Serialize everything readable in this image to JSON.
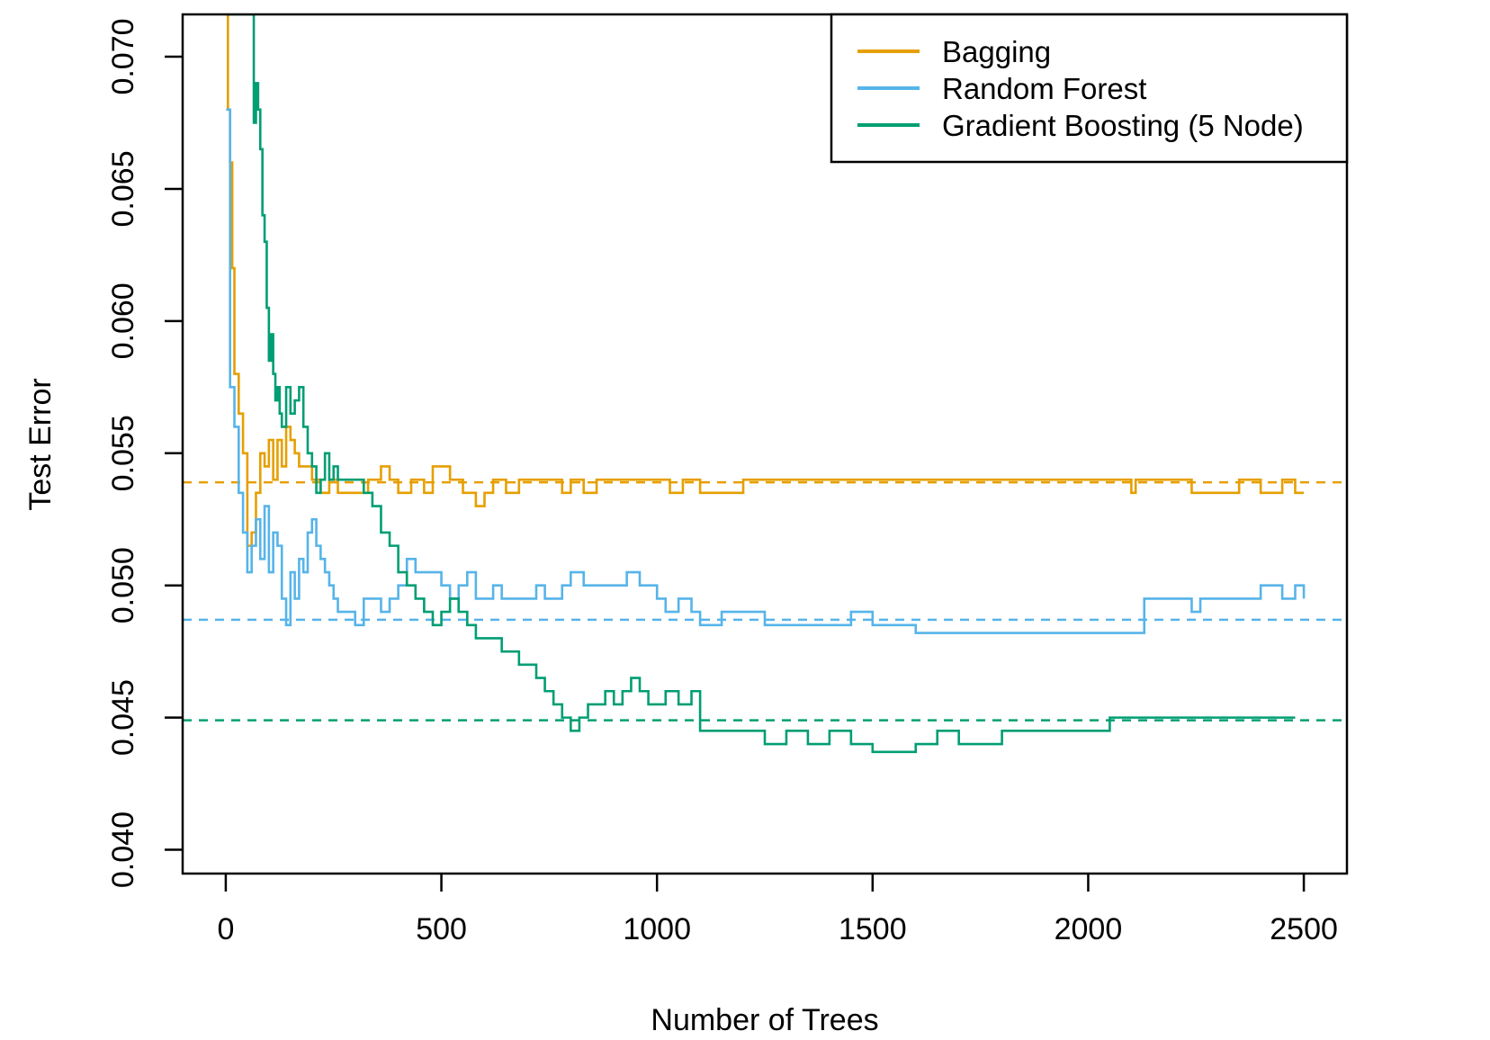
{
  "chart_data": {
    "type": "line",
    "xlabel": "Number of Trees",
    "ylabel": "Test Error",
    "xlim": [
      -100,
      2600
    ],
    "ylim": [
      0.0391,
      0.0716
    ],
    "x_ticks": [
      0,
      500,
      1000,
      1500,
      2000,
      2500
    ],
    "x_tick_labels": [
      "0",
      "500",
      "1000",
      "1500",
      "2000",
      "2500"
    ],
    "y_ticks": [
      0.04,
      0.045,
      0.05,
      0.055,
      0.06,
      0.065,
      0.07
    ],
    "y_tick_labels": [
      "0.040",
      "0.045",
      "0.050",
      "0.055",
      "0.060",
      "0.065",
      "0.070"
    ],
    "legend": {
      "position": "top-right",
      "entries": [
        "Bagging",
        "Random Forest",
        "Gradient Boosting (5 Node)"
      ]
    },
    "series": [
      {
        "name": "Bagging",
        "color": "#E69F00",
        "style": "step",
        "x": [
          1,
          5,
          10,
          15,
          20,
          30,
          40,
          50,
          60,
          70,
          80,
          90,
          100,
          110,
          120,
          130,
          140,
          150,
          160,
          170,
          180,
          200,
          220,
          240,
          260,
          280,
          300,
          330,
          360,
          380,
          400,
          430,
          460,
          480,
          500,
          520,
          550,
          580,
          600,
          620,
          650,
          680,
          700,
          720,
          750,
          780,
          800,
          830,
          860,
          900,
          950,
          1000,
          1030,
          1060,
          1100,
          1150,
          1200,
          1250,
          1300,
          1400,
          1500,
          1600,
          1700,
          1800,
          1900,
          2000,
          2100,
          2110,
          2150,
          2240,
          2300,
          2350,
          2400,
          2450,
          2480,
          2500
        ],
        "values": [
          0.0716,
          0.068,
          0.066,
          0.062,
          0.058,
          0.0565,
          0.055,
          0.0515,
          0.052,
          0.0535,
          0.055,
          0.0545,
          0.0555,
          0.054,
          0.0555,
          0.0545,
          0.056,
          0.0555,
          0.055,
          0.0545,
          0.0545,
          0.054,
          0.0535,
          0.054,
          0.0535,
          0.0535,
          0.0535,
          0.054,
          0.0545,
          0.054,
          0.0535,
          0.054,
          0.0535,
          0.0545,
          0.0545,
          0.054,
          0.0535,
          0.053,
          0.0535,
          0.054,
          0.0535,
          0.054,
          0.054,
          0.054,
          0.054,
          0.0535,
          0.054,
          0.0535,
          0.054,
          0.054,
          0.054,
          0.054,
          0.0535,
          0.054,
          0.0535,
          0.0535,
          0.054,
          0.054,
          0.054,
          0.054,
          0.054,
          0.054,
          0.054,
          0.054,
          0.054,
          0.054,
          0.0535,
          0.054,
          0.054,
          0.0535,
          0.0535,
          0.054,
          0.0535,
          0.054,
          0.0535,
          0.0535
        ]
      },
      {
        "name": "Random Forest",
        "color": "#56B4E9",
        "style": "step",
        "x": [
          1,
          10,
          20,
          30,
          40,
          50,
          60,
          70,
          80,
          90,
          100,
          110,
          120,
          130,
          140,
          150,
          160,
          170,
          180,
          190,
          200,
          210,
          220,
          230,
          240,
          250,
          260,
          280,
          300,
          320,
          340,
          360,
          380,
          400,
          420,
          440,
          460,
          480,
          500,
          520,
          540,
          560,
          580,
          600,
          620,
          640,
          660,
          680,
          700,
          720,
          740,
          760,
          780,
          800,
          830,
          860,
          900,
          930,
          960,
          1000,
          1020,
          1050,
          1080,
          1100,
          1150,
          1200,
          1250,
          1300,
          1350,
          1400,
          1450,
          1500,
          1550,
          1600,
          1700,
          1800,
          1900,
          2000,
          2050,
          2100,
          2130,
          2200,
          2240,
          2260,
          2300,
          2340,
          2400,
          2450,
          2480,
          2500
        ],
        "values": [
          0.068,
          0.0575,
          0.056,
          0.0535,
          0.052,
          0.0505,
          0.0515,
          0.0525,
          0.051,
          0.053,
          0.0505,
          0.052,
          0.0515,
          0.0495,
          0.0485,
          0.0505,
          0.0495,
          0.051,
          0.0505,
          0.052,
          0.0525,
          0.0515,
          0.051,
          0.0505,
          0.05,
          0.0495,
          0.049,
          0.049,
          0.0485,
          0.0495,
          0.0495,
          0.049,
          0.0495,
          0.05,
          0.051,
          0.0505,
          0.0505,
          0.0505,
          0.05,
          0.0495,
          0.05,
          0.0505,
          0.0495,
          0.0495,
          0.05,
          0.0495,
          0.0495,
          0.0495,
          0.0495,
          0.05,
          0.0495,
          0.0495,
          0.05,
          0.0505,
          0.05,
          0.05,
          0.05,
          0.0505,
          0.05,
          0.0495,
          0.049,
          0.0495,
          0.049,
          0.0485,
          0.049,
          0.049,
          0.0485,
          0.0485,
          0.0485,
          0.0485,
          0.049,
          0.0485,
          0.0485,
          0.0482,
          0.0482,
          0.0482,
          0.0482,
          0.0482,
          0.0482,
          0.0482,
          0.0495,
          0.0495,
          0.049,
          0.0495,
          0.0495,
          0.0495,
          0.05,
          0.0495,
          0.05,
          0.0495
        ]
      },
      {
        "name": "Gradient Boosting (5 Node)",
        "color": "#009E73",
        "style": "step",
        "x": [
          1,
          20,
          30,
          40,
          45,
          50,
          55,
          60,
          65,
          70,
          75,
          80,
          85,
          90,
          95,
          100,
          105,
          110,
          115,
          120,
          125,
          130,
          140,
          150,
          160,
          170,
          180,
          190,
          200,
          210,
          220,
          230,
          240,
          250,
          260,
          280,
          300,
          320,
          340,
          360,
          380,
          400,
          420,
          440,
          460,
          480,
          500,
          520,
          540,
          560,
          580,
          600,
          620,
          640,
          660,
          680,
          700,
          720,
          740,
          760,
          780,
          800,
          820,
          840,
          860,
          880,
          900,
          920,
          940,
          960,
          980,
          1000,
          1020,
          1050,
          1080,
          1100,
          1150,
          1200,
          1250,
          1300,
          1350,
          1400,
          1450,
          1500,
          1550,
          1600,
          1650,
          1700,
          1750,
          1800,
          1850,
          1900,
          1950,
          2000,
          2050,
          2100,
          2150,
          2200,
          2250,
          2300,
          2350,
          2400,
          2450,
          2480
        ],
        "values": [
          0.0716,
          0.0716,
          0.0716,
          0.0716,
          0.0716,
          0.0716,
          0.0716,
          0.0716,
          0.0675,
          0.069,
          0.068,
          0.0665,
          0.064,
          0.063,
          0.0605,
          0.0585,
          0.0595,
          0.058,
          0.057,
          0.0575,
          0.0565,
          0.056,
          0.0575,
          0.0565,
          0.057,
          0.0575,
          0.056,
          0.055,
          0.0545,
          0.0535,
          0.054,
          0.055,
          0.054,
          0.0545,
          0.054,
          0.054,
          0.054,
          0.0535,
          0.053,
          0.052,
          0.0515,
          0.0505,
          0.05,
          0.0495,
          0.049,
          0.0485,
          0.049,
          0.0495,
          0.049,
          0.0485,
          0.048,
          0.048,
          0.048,
          0.0475,
          0.0475,
          0.047,
          0.047,
          0.0465,
          0.046,
          0.0455,
          0.045,
          0.0445,
          0.045,
          0.0455,
          0.0455,
          0.046,
          0.0455,
          0.046,
          0.0465,
          0.046,
          0.0455,
          0.0455,
          0.046,
          0.0455,
          0.046,
          0.0445,
          0.0445,
          0.0445,
          0.044,
          0.0445,
          0.044,
          0.0445,
          0.044,
          0.0437,
          0.0437,
          0.044,
          0.0445,
          0.044,
          0.044,
          0.0445,
          0.0445,
          0.0445,
          0.0445,
          0.0445,
          0.045,
          0.045,
          0.045,
          0.045,
          0.045,
          0.045,
          0.045,
          0.045,
          0.045,
          0.045
        ]
      }
    ],
    "reference_lines": [
      {
        "series": "Bagging",
        "y": 0.0539,
        "color": "#E69F00",
        "style": "dashed"
      },
      {
        "series": "Random Forest",
        "y": 0.0487,
        "color": "#56B4E9",
        "style": "dashed"
      },
      {
        "series": "Gradient Boosting (5 Node)",
        "y": 0.0449,
        "color": "#009E73",
        "style": "dashed"
      }
    ]
  }
}
